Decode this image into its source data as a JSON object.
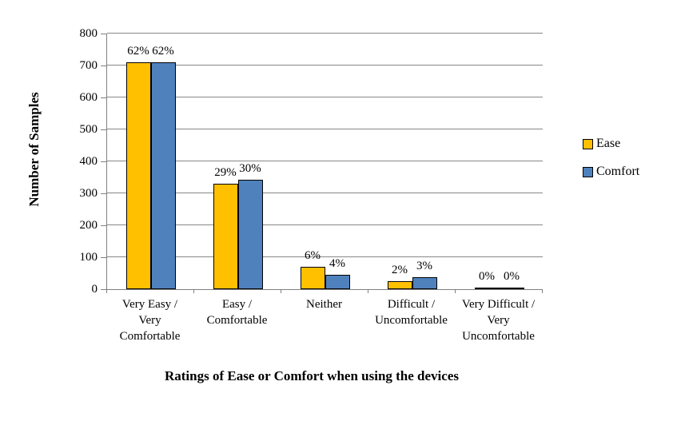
{
  "chart_data": {
    "type": "bar",
    "title": "",
    "xlabel": "Ratings of Ease or Comfort when using the devices",
    "ylabel": "Number of Samples",
    "ylim": [
      0,
      800
    ],
    "yticks": [
      0,
      100,
      200,
      300,
      400,
      500,
      600,
      700,
      800
    ],
    "grid": true,
    "legend_position": "right",
    "categories": [
      [
        "Very Easy /",
        "Very",
        "Comfortable"
      ],
      [
        "Easy /",
        "Comfortable"
      ],
      [
        "Neither"
      ],
      [
        "Difficult /",
        "Uncomfortable"
      ],
      [
        "Very Difficult /",
        "Very",
        "Uncomfortable"
      ]
    ],
    "series": [
      {
        "name": "Ease",
        "color": "#FFC000",
        "values": [
          710,
          330,
          70,
          25,
          2
        ],
        "labels": [
          "62%",
          "29%",
          "6%",
          "2%",
          "0%"
        ]
      },
      {
        "name": "Comfort",
        "color": "#4F81BD",
        "values": [
          710,
          343,
          45,
          38,
          2
        ],
        "labels": [
          "62%",
          "30%",
          "4%",
          "3%",
          "0%"
        ]
      }
    ]
  },
  "colors": {
    "bar_border": "#000000",
    "gridline": "#878787",
    "axis": "#808080",
    "background": "#FFFFFF"
  }
}
